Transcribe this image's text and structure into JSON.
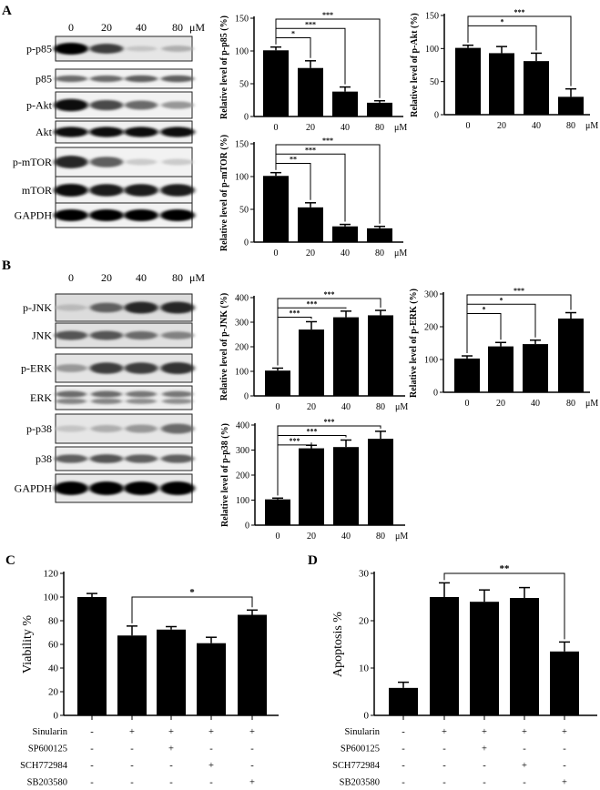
{
  "panels": {
    "A": "A",
    "B": "B",
    "C": "C",
    "D": "D"
  },
  "blots": [
    {
      "panel": "A",
      "lanes": [
        "0",
        "20",
        "40",
        "80"
      ],
      "unit": "μM",
      "rows": [
        {
          "label": "p-p85",
          "intensity": [
            1.0,
            0.75,
            0.15,
            0.25
          ],
          "bg": "#e6e6e6"
        },
        {
          "label": "p85",
          "intensity": [
            0.55,
            0.55,
            0.6,
            0.6
          ],
          "bg": "#f2f2f2"
        },
        {
          "label": "p-Akt",
          "intensity": [
            0.95,
            0.7,
            0.55,
            0.35
          ],
          "bg": "#f2f2f2"
        },
        {
          "label": "Akt",
          "intensity": [
            0.95,
            0.95,
            0.95,
            0.95
          ],
          "bg": "#f0f0f0"
        },
        {
          "label": "p-mTOR",
          "intensity": [
            0.85,
            0.6,
            0.12,
            0.12
          ],
          "bg": "#f2f2f2"
        },
        {
          "label": "mTOR",
          "intensity": [
            0.95,
            0.9,
            0.9,
            0.9
          ],
          "bg": "#f2f2f2"
        },
        {
          "label": "GAPDH",
          "intensity": [
            1.0,
            1.0,
            1.0,
            1.0
          ],
          "bg": "#f2f2f2"
        }
      ]
    },
    {
      "panel": "B",
      "lanes": [
        "0",
        "20",
        "40",
        "80"
      ],
      "unit": "μM",
      "rows": [
        {
          "label": "p-JNK",
          "intensity": [
            0.2,
            0.6,
            0.85,
            0.85
          ],
          "bg": "#dcdcdc"
        },
        {
          "label": "JNK",
          "intensity": [
            0.65,
            0.65,
            0.55,
            0.45
          ],
          "bg": "#e0e0e0"
        },
        {
          "label": "p-ERK",
          "intensity": [
            0.35,
            0.75,
            0.75,
            0.8
          ],
          "bg": "#e4e4e4"
        },
        {
          "label": "ERK",
          "intensity": [
            0.55,
            0.55,
            0.5,
            0.5
          ],
          "bg": "#ededed",
          "double": true
        },
        {
          "label": "p-p38",
          "intensity": [
            0.15,
            0.25,
            0.35,
            0.55
          ],
          "bg": "#e6e6e6"
        },
        {
          "label": "p38",
          "intensity": [
            0.6,
            0.65,
            0.6,
            0.6
          ],
          "bg": "#ececec"
        },
        {
          "label": "GAPDH",
          "intensity": [
            1.0,
            1.0,
            1.0,
            1.0
          ],
          "bg": "#e8e8e8"
        }
      ]
    }
  ],
  "chart_data": [
    {
      "id": "p-p85",
      "type": "bar",
      "ylabel": "Relative level of p-p85 (%)",
      "categories": [
        "0",
        "20",
        "40",
        "80"
      ],
      "unit": "μM",
      "values": [
        101,
        74,
        38,
        21
      ],
      "errors": [
        5,
        11,
        7,
        3
      ],
      "ylim": [
        0,
        150
      ],
      "yticks": [
        0,
        50,
        100,
        150
      ],
      "significance": [
        {
          "from": 0,
          "to": 1,
          "label": "*"
        },
        {
          "from": 0,
          "to": 2,
          "label": "***"
        },
        {
          "from": 0,
          "to": 3,
          "label": "***"
        }
      ]
    },
    {
      "id": "p-Akt",
      "type": "bar",
      "ylabel": "Relative level of p-Akt (%)",
      "categories": [
        "0",
        "20",
        "40",
        "80"
      ],
      "unit": "μM",
      "values": [
        101,
        93,
        81,
        27
      ],
      "errors": [
        4,
        10,
        12,
        12
      ],
      "ylim": [
        0,
        150
      ],
      "yticks": [
        0,
        50,
        100,
        150
      ],
      "significance": [
        {
          "from": 0,
          "to": 2,
          "label": "*"
        },
        {
          "from": 0,
          "to": 3,
          "label": "***"
        }
      ]
    },
    {
      "id": "p-mTOR",
      "type": "bar",
      "ylabel": "Relative level of p-mTOR (%)",
      "categories": [
        "0",
        "20",
        "40",
        "80"
      ],
      "unit": "μM",
      "values": [
        101,
        53,
        24,
        21
      ],
      "errors": [
        5,
        7,
        3,
        3
      ],
      "ylim": [
        0,
        150
      ],
      "yticks": [
        0,
        50,
        100,
        150
      ],
      "significance": [
        {
          "from": 0,
          "to": 1,
          "label": "**"
        },
        {
          "from": 0,
          "to": 2,
          "label": "***"
        },
        {
          "from": 0,
          "to": 3,
          "label": "***"
        }
      ]
    },
    {
      "id": "p-JNK",
      "type": "bar",
      "ylabel": "Relative level of p-JNK (%)",
      "categories": [
        "0",
        "20",
        "40",
        "80"
      ],
      "unit": "μM",
      "values": [
        103,
        270,
        320,
        328
      ],
      "errors": [
        10,
        32,
        25,
        20
      ],
      "ylim": [
        0,
        400
      ],
      "yticks": [
        0,
        100,
        200,
        300,
        400
      ],
      "significance": [
        {
          "from": 0,
          "to": 1,
          "label": "***"
        },
        {
          "from": 0,
          "to": 2,
          "label": "***"
        },
        {
          "from": 0,
          "to": 3,
          "label": "***"
        }
      ]
    },
    {
      "id": "p-ERK",
      "type": "bar",
      "ylabel": "Relative level of p-ERK (%)",
      "categories": [
        "0",
        "20",
        "40",
        "80"
      ],
      "unit": "μM",
      "values": [
        103,
        140,
        147,
        225
      ],
      "errors": [
        8,
        12,
        12,
        18
      ],
      "ylim": [
        0,
        300
      ],
      "yticks": [
        0,
        100,
        200,
        300
      ],
      "significance": [
        {
          "from": 0,
          "to": 1,
          "label": "*"
        },
        {
          "from": 0,
          "to": 2,
          "label": "*"
        },
        {
          "from": 0,
          "to": 3,
          "label": "***"
        }
      ]
    },
    {
      "id": "p-p38",
      "type": "bar",
      "ylabel": "Relative level of p-p38 (%)",
      "categories": [
        "0",
        "20",
        "40",
        "80"
      ],
      "unit": "μM",
      "values": [
        103,
        307,
        312,
        345
      ],
      "errors": [
        5,
        12,
        28,
        30
      ],
      "ylim": [
        0,
        400
      ],
      "yticks": [
        0,
        100,
        200,
        300,
        400
      ],
      "significance": [
        {
          "from": 0,
          "to": 1,
          "label": "***"
        },
        {
          "from": 0,
          "to": 2,
          "label": "***"
        },
        {
          "from": 0,
          "to": 3,
          "label": "***"
        }
      ]
    },
    {
      "id": "viability",
      "type": "bar",
      "ylabel": "Viability %",
      "values": [
        100,
        67.5,
        72.5,
        61,
        85
      ],
      "errors": [
        3,
        8,
        2.5,
        5,
        4
      ],
      "ylim": [
        0,
        120
      ],
      "yticks": [
        0,
        20,
        40,
        60,
        80,
        100,
        120
      ],
      "significance": [
        {
          "from": 1,
          "to": 4,
          "label": "*",
          "at": 100
        }
      ],
      "treatments": [
        {
          "name": "Sinularin",
          "marks": [
            "-",
            "+",
            "+",
            "+",
            "+"
          ]
        },
        {
          "name": "SP600125",
          "marks": [
            "-",
            "-",
            "+",
            "-",
            "-"
          ]
        },
        {
          "name": "SCH772984",
          "marks": [
            "-",
            "-",
            "-",
            "+",
            "-"
          ]
        },
        {
          "name": "SB203580",
          "marks": [
            "-",
            "-",
            "-",
            "-",
            "+"
          ]
        }
      ]
    },
    {
      "id": "apoptosis",
      "type": "bar",
      "ylabel": "Apoptosis %",
      "values": [
        5.8,
        25,
        24,
        24.8,
        13.5
      ],
      "errors": [
        1.2,
        3,
        2.5,
        2.2,
        2
      ],
      "ylim": [
        0,
        30
      ],
      "yticks": [
        0,
        10,
        20,
        30
      ],
      "significance": [
        {
          "from": 1,
          "to": 4,
          "label": "**",
          "at": 30
        }
      ],
      "treatments": [
        {
          "name": "Sinularin",
          "marks": [
            "-",
            "+",
            "+",
            "+",
            "+"
          ]
        },
        {
          "name": "SP600125",
          "marks": [
            "-",
            "-",
            "+",
            "-",
            "-"
          ]
        },
        {
          "name": "SCH772984",
          "marks": [
            "-",
            "-",
            "-",
            "+",
            "-"
          ]
        },
        {
          "name": "SB203580",
          "marks": [
            "-",
            "-",
            "-",
            "-",
            "+"
          ]
        }
      ]
    }
  ]
}
